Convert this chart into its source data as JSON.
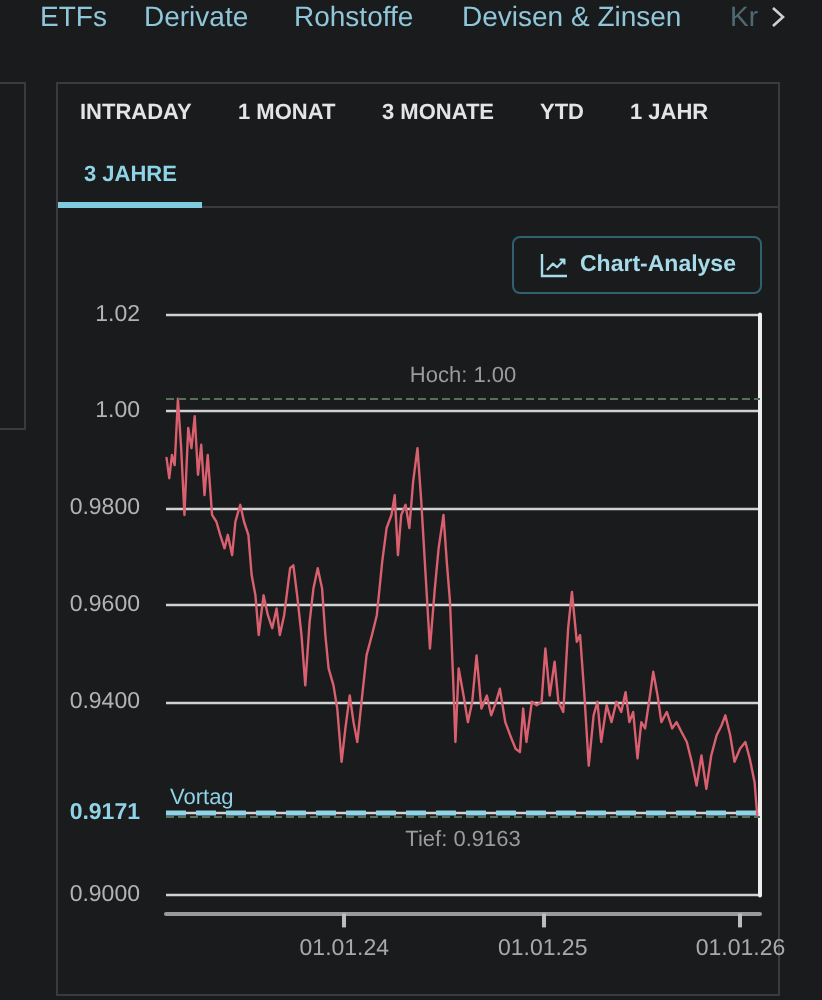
{
  "chart_data": {
    "type": "line",
    "annotations": [
      "ETFs",
      "Derivate",
      "Rohstoffe",
      "Devisen & Zinsen",
      "Kr",
      "INTRADAY",
      "1 MONAT",
      "3 MONATE",
      "YTD",
      "1 JAHR",
      "3 JAHRE",
      "Chart-Analyse"
    ],
    "x": [
      "2023-02-07",
      "2023-02-12",
      "2023-02-17",
      "2023-02-22",
      "2023-02-28",
      "2023-03-06",
      "2023-03-12",
      "2023-03-19",
      "2023-03-25",
      "2023-03-31",
      "2023-04-06",
      "2023-04-12",
      "2023-04-18",
      "2023-04-24",
      "2023-05-02",
      "2023-05-10",
      "2023-05-17",
      "2023-05-25",
      "2023-05-31",
      "2023-06-08",
      "2023-06-14",
      "2023-06-23",
      "2023-06-30",
      "2023-07-08",
      "2023-07-14",
      "2023-07-21",
      "2023-07-27",
      "2023-08-05",
      "2023-08-13",
      "2023-08-21",
      "2023-08-29",
      "2023-09-04",
      "2023-09-12",
      "2023-09-23",
      "2023-09-29",
      "2023-10-06",
      "2023-10-14",
      "2023-10-21",
      "2023-10-29",
      "2023-11-05",
      "2023-11-13",
      "2023-11-21",
      "2023-11-27",
      "2023-12-03",
      "2023-12-12",
      "2023-12-19",
      "2023-12-27",
      "2024-01-03",
      "2024-01-11",
      "2024-01-18",
      "2024-01-25",
      "2024-02-03",
      "2024-02-11",
      "2024-02-21",
      "2024-03-01",
      "2024-03-11",
      "2024-03-19",
      "2024-03-28",
      "2024-04-03",
      "2024-04-09",
      "2024-04-15",
      "2024-04-23",
      "2024-04-30",
      "2024-05-07",
      "2024-05-15",
      "2024-05-22",
      "2024-05-30",
      "2024-06-07",
      "2024-06-16",
      "2024-06-23",
      "2024-07-02",
      "2024-07-08",
      "2024-07-14",
      "2024-07-20",
      "2024-07-24",
      "2024-07-30",
      "2024-08-08",
      "2024-08-16",
      "2024-08-24",
      "2024-09-01",
      "2024-09-10",
      "2024-09-20",
      "2024-09-28",
      "2024-10-07",
      "2024-10-14",
      "2024-10-24",
      "2024-11-02",
      "2024-11-12",
      "2024-11-20",
      "2024-11-26",
      "2024-12-02",
      "2024-12-12",
      "2024-12-21",
      "2024-12-30",
      "2025-01-06",
      "2025-01-14",
      "2025-01-23",
      "2025-01-30",
      "2025-02-08",
      "2025-02-17",
      "2025-02-24",
      "2025-03-05",
      "2025-03-11",
      "2025-03-19",
      "2025-03-27",
      "2025-04-05",
      "2025-04-12",
      "2025-04-19",
      "2025-04-29",
      "2025-05-08",
      "2025-05-17",
      "2025-05-26",
      "2025-06-03",
      "2025-06-10",
      "2025-06-17",
      "2025-06-25",
      "2025-07-02",
      "2025-07-09",
      "2025-07-18",
      "2025-07-24",
      "2025-08-01",
      "2025-08-08",
      "2025-08-18",
      "2025-08-28",
      "2025-09-05",
      "2025-09-14",
      "2025-09-24",
      "2025-10-03",
      "2025-10-12",
      "2025-10-21",
      "2025-10-30",
      "2025-11-08",
      "2025-11-18",
      "2025-11-27",
      "2025-12-04",
      "2025-12-13",
      "2025-12-21",
      "2025-12-31",
      "2026-01-10",
      "2026-01-18",
      "2026-01-27",
      "2026-02-01"
    ],
    "values": [
      0.9904,
      0.9862,
      0.991,
      0.9889,
      1.0026,
      0.9924,
      0.9786,
      0.9966,
      0.9924,
      0.999,
      0.9869,
      0.9931,
      0.9827,
      0.991,
      0.9786,
      0.9772,
      0.9745,
      0.9717,
      0.9745,
      0.9703,
      0.9772,
      0.9807,
      0.9772,
      0.9745,
      0.9662,
      0.962,
      0.9538,
      0.962,
      0.9579,
      0.9552,
      0.9593,
      0.9538,
      0.9579,
      0.9676,
      0.9682,
      0.962,
      0.9538,
      0.9434,
      0.9565,
      0.9634,
      0.9676,
      0.9634,
      0.9538,
      0.9469,
      0.9434,
      0.9386,
      0.9276,
      0.9345,
      0.9413,
      0.9358,
      0.9317,
      0.9413,
      0.9496,
      0.9538,
      0.9579,
      0.969,
      0.9759,
      0.9786,
      0.9827,
      0.9703,
      0.9786,
      0.9807,
      0.9759,
      0.9855,
      0.9924,
      0.9814,
      0.9662,
      0.951,
      0.9634,
      0.9717,
      0.9786,
      0.969,
      0.9607,
      0.9441,
      0.9317,
      0.9469,
      0.9413,
      0.9358,
      0.94,
      0.9496,
      0.9386,
      0.9413,
      0.9372,
      0.94,
      0.9427,
      0.9358,
      0.9331,
      0.9303,
      0.9296,
      0.9386,
      0.9317,
      0.94,
      0.9393,
      0.94,
      0.951,
      0.9413,
      0.9483,
      0.94,
      0.9379,
      0.9552,
      0.9627,
      0.9524,
      0.9538,
      0.9413,
      0.9268,
      0.9372,
      0.94,
      0.9317,
      0.9393,
      0.9358,
      0.94,
      0.9379,
      0.942,
      0.9358,
      0.9379,
      0.9283,
      0.9358,
      0.9345,
      0.9413,
      0.9462,
      0.9413,
      0.9358,
      0.9379,
      0.9345,
      0.9358,
      0.9338,
      0.9317,
      0.9276,
      0.9227,
      0.9289,
      0.922,
      0.9289,
      0.9331,
      0.9351,
      0.9372,
      0.9331,
      0.9276,
      0.9303,
      0.9317,
      0.9283,
      0.9234,
      0.9163
    ],
    "color": "#d9606e",
    "xlim": [
      "2023-02-06",
      "2026-02-06"
    ],
    "xticks": [
      {
        "value": "2024-01-01",
        "label": "01.01.24"
      },
      {
        "value": "2025-01-01",
        "label": "01.01.25"
      },
      {
        "value": "2026-01-01",
        "label": "01.01.26"
      }
    ],
    "ylim": [
      0.9,
      1.02
    ],
    "yticks": [
      {
        "value": 0.9,
        "label": "0.9000"
      },
      0.9171,
      {
        "value": 0.94,
        "label": "0.9400"
      },
      {
        "value": 0.96,
        "label": "0.9600"
      },
      {
        "value": 0.98,
        "label": "0.9800"
      },
      {
        "value": 1,
        "label": "1.00"
      },
      1.02
    ],
    "ref_lines": [
      {
        "axis": "y",
        "value": 1.0026,
        "label": "Hoch: 1.00",
        "color": "#56705a",
        "line_style": "dashed"
      },
      {
        "axis": "y",
        "value": 0.9171,
        "label": "Vortag",
        "color": "#8fd3e6",
        "line_style": "dashed"
      },
      {
        "axis": "y",
        "value": 0.9163,
        "label": "Tief: 0.9163",
        "color": "#56705a",
        "line_style": "dashed"
      }
    ],
    "grid": "y"
  }
}
